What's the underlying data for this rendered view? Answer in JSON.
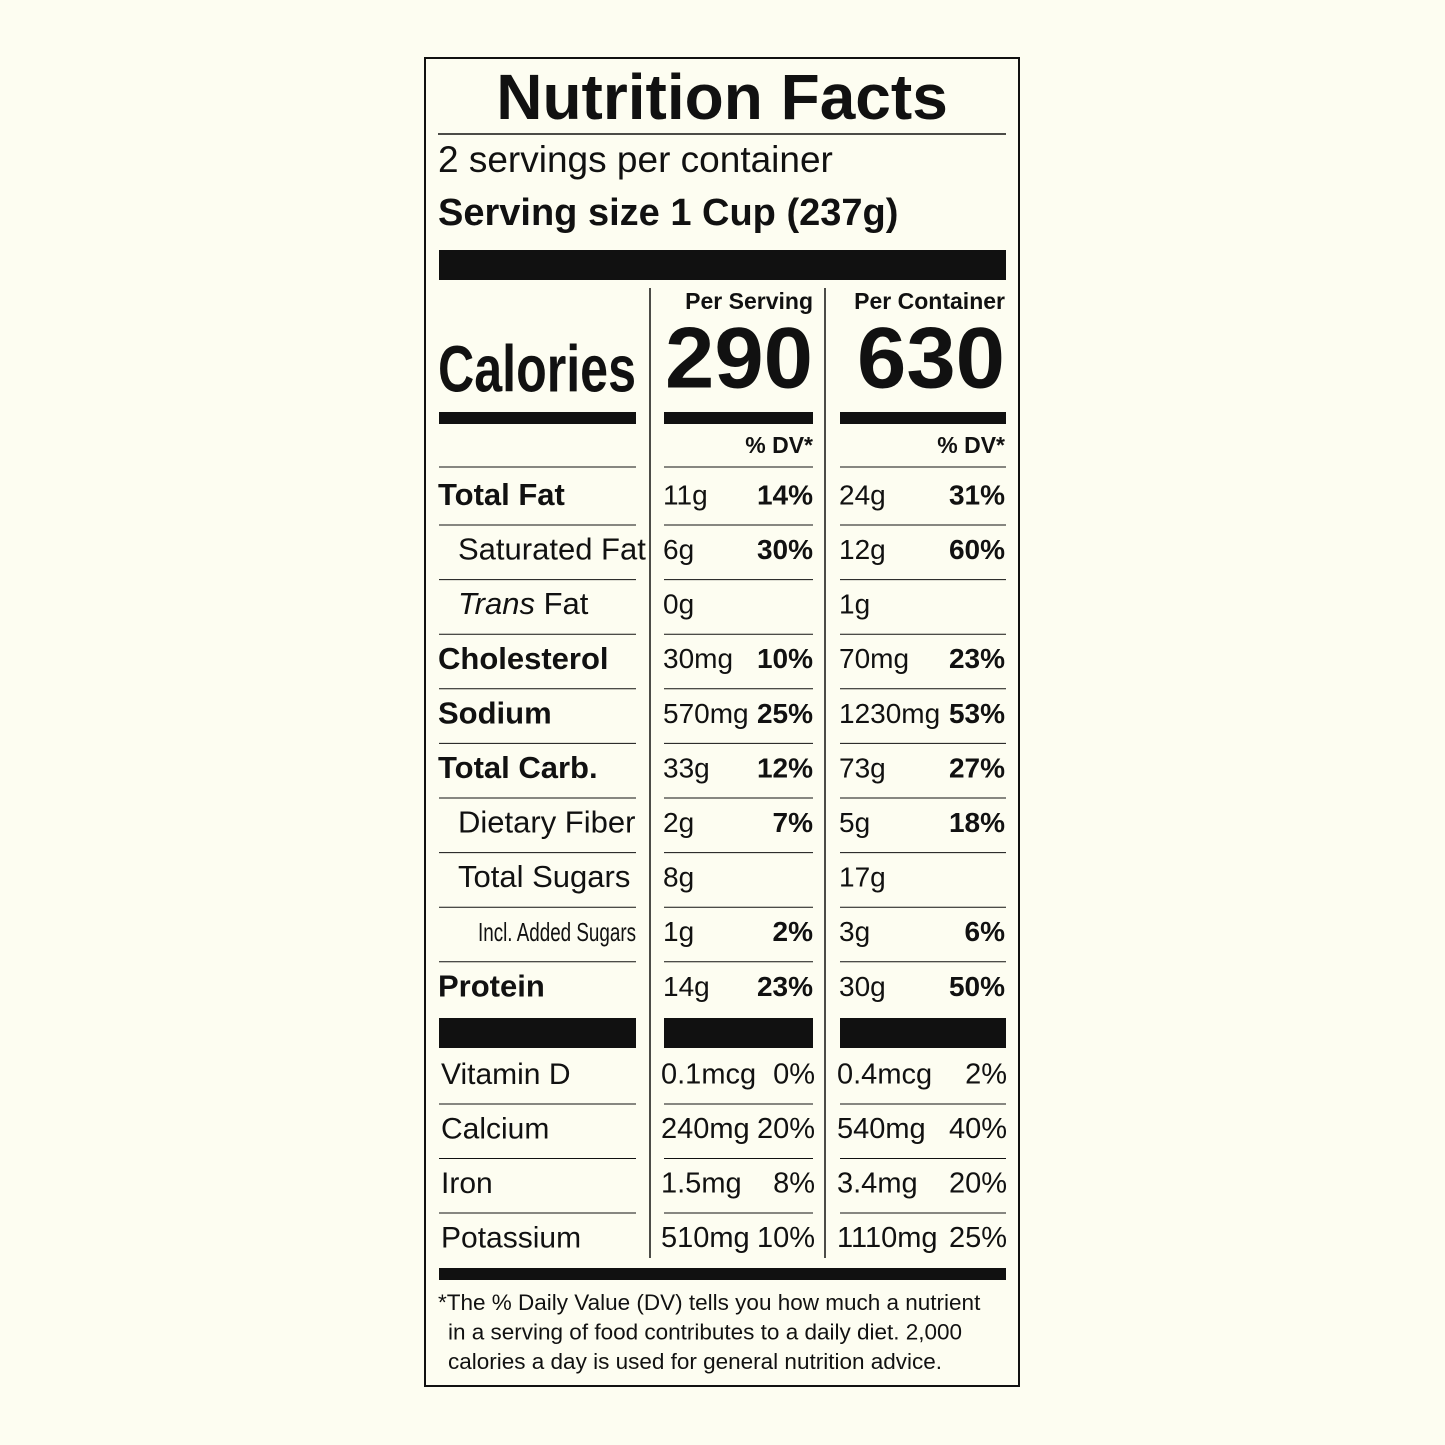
{
  "title": "Nutrition Facts",
  "servings": "2 servings per container",
  "serving_size": "Serving size 1 Cup (237g)",
  "columns": [
    "Per Serving",
    "Per Container"
  ],
  "calories": {
    "label": "Calories",
    "values": [
      "290",
      "630"
    ]
  },
  "dv_header": "% DV*",
  "nutrients": [
    {
      "label": "Total Fat",
      "per_serving": {
        "amount": "11g",
        "dv": "14%"
      },
      "per_container": {
        "amount": "24g",
        "dv": "31%"
      }
    },
    {
      "label": "Saturated Fat",
      "per_serving": {
        "amount": "6g",
        "dv": "30%"
      },
      "per_container": {
        "amount": "12g",
        "dv": "60%"
      }
    },
    {
      "label_italic": "Trans",
      "label": " Fat",
      "per_serving": {
        "amount": "0g"
      },
      "per_container": {
        "amount": "1g"
      }
    },
    {
      "label": "Cholesterol",
      "per_serving": {
        "amount": "30mg",
        "dv": "10%"
      },
      "per_container": {
        "amount": "70mg",
        "dv": "23%"
      }
    },
    {
      "label": "Sodium",
      "per_serving": {
        "amount": "570mg",
        "dv": "25%"
      },
      "per_container": {
        "amount": "1230mg",
        "dv": "53%"
      }
    },
    {
      "label": "Total Carb.",
      "per_serving": {
        "amount": "33g",
        "dv": "12%"
      },
      "per_container": {
        "amount": "73g",
        "dv": "27%"
      }
    },
    {
      "label": "Dietary Fiber",
      "per_serving": {
        "amount": "2g",
        "dv": "7%"
      },
      "per_container": {
        "amount": "5g",
        "dv": "18%"
      }
    },
    {
      "label": "Total Sugars",
      "per_serving": {
        "amount": "8g"
      },
      "per_container": {
        "amount": "17g"
      }
    },
    {
      "label": "Incl. Added Sugars",
      "per_serving": {
        "amount": "1g",
        "dv": "2%"
      },
      "per_container": {
        "amount": "3g",
        "dv": "6%"
      }
    },
    {
      "label": "Protein",
      "per_serving": {
        "amount": "14g",
        "dv": "23%"
      },
      "per_container": {
        "amount": "30g",
        "dv": "50%"
      }
    }
  ],
  "vitamins": [
    {
      "label": "Vitamin D",
      "per_serving": {
        "amount": "0.1mcg",
        "dv": "0%"
      },
      "per_container": {
        "amount": "0.4mcg",
        "dv": "2%"
      }
    },
    {
      "label": "Calcium",
      "per_serving": {
        "amount": "240mg",
        "dv": "20%"
      },
      "per_container": {
        "amount": "540mg",
        "dv": "40%"
      }
    },
    {
      "label": "Iron",
      "per_serving": {
        "amount": "1.5mg",
        "dv": "8%"
      },
      "per_container": {
        "amount": "3.4mg",
        "dv": "20%"
      }
    },
    {
      "label": "Potassium",
      "per_serving": {
        "amount": "510mg",
        "dv": "10%"
      },
      "per_container": {
        "amount": "1110mg",
        "dv": "25%"
      }
    }
  ],
  "footnote": [
    "*The % Daily Value (DV) tells you how much a nutrient",
    "in a serving of food contributes to a daily diet. 2,000",
    "calories a day is used for general nutrition advice."
  ]
}
